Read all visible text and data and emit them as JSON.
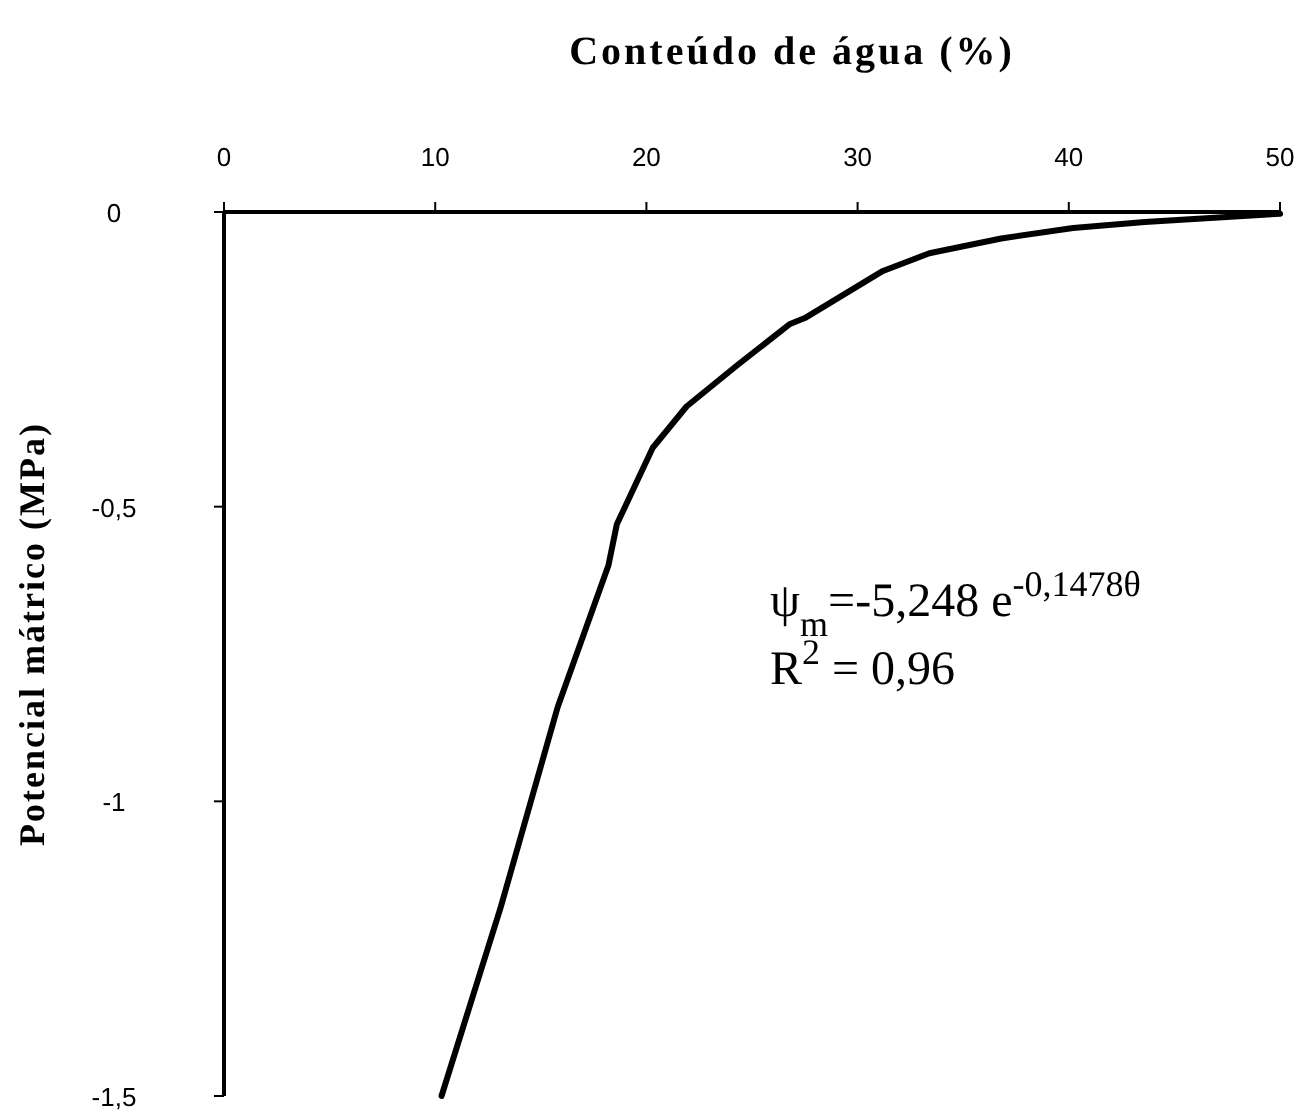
{
  "chart_data": {
    "type": "line",
    "xlabel": "Conteúdo de água (%)",
    "ylabel": "Potencial mátrico (MPa)",
    "xlim": [
      0,
      50
    ],
    "xticks": [
      0,
      10,
      20,
      30,
      40,
      50
    ],
    "ylim": [
      -1.5,
      0
    ],
    "yticks": [
      {
        "value": 0,
        "label": "0"
      },
      {
        "value": -0.5,
        "label": "-0,5"
      },
      {
        "value": -1,
        "label": "-1"
      },
      {
        "value": -1.5,
        "label": "-1,5"
      }
    ],
    "grid": false,
    "marker": "none",
    "line_style": "solid",
    "series": [
      {
        "color": "#000000",
        "x": [
          10.3,
          13.1,
          15.8,
          18.2,
          18.6,
          20.3,
          21.9,
          24.3,
          26.8,
          27.5,
          31.2,
          33.4,
          36.8,
          40.2,
          43.6,
          46.7,
          50
        ],
        "values": [
          -1.5,
          -1.18,
          -0.84,
          -0.6,
          -0.53,
          -0.4,
          -0.33,
          -0.26,
          -0.19,
          -0.18,
          -0.1,
          -0.07,
          -0.045,
          -0.027,
          -0.017,
          -0.01,
          -0.003
        ]
      }
    ],
    "annotations": [
      "ψ$_{m}$=-5,248 e$^{-0,1478θ}$",
      "R$^{2}$ = 0,96"
    ]
  }
}
